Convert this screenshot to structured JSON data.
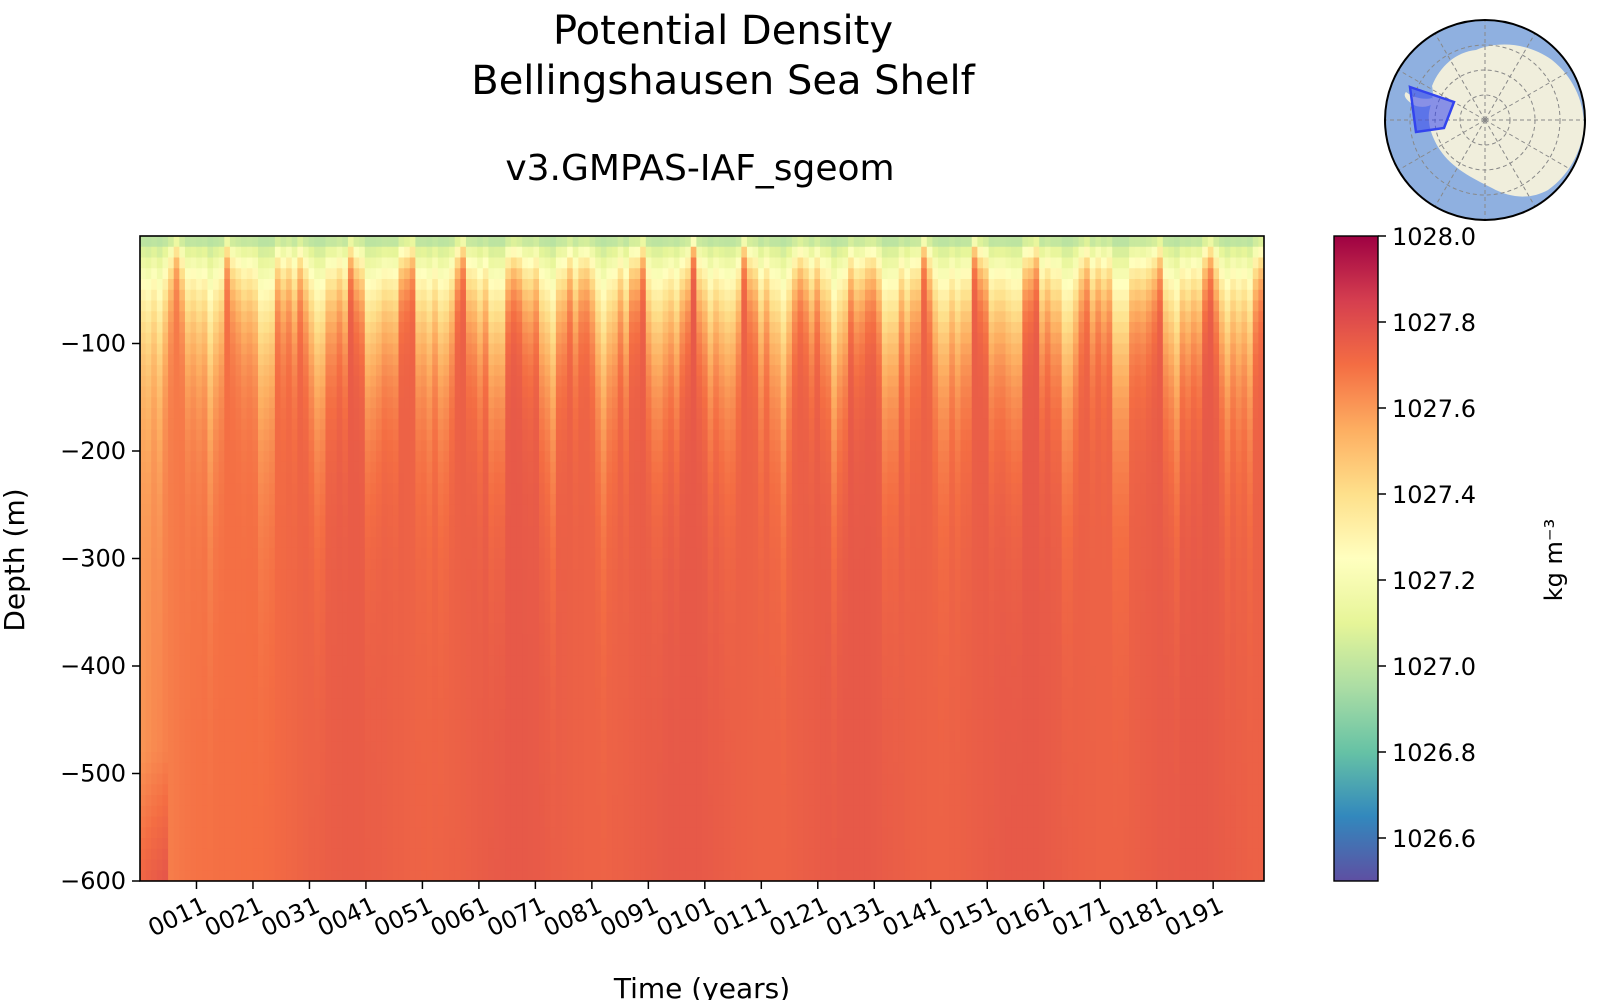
{
  "chart_data": {
    "type": "heatmap",
    "title_line1": "Potential Density",
    "title_line2": "Bellingshausen Sea Shelf",
    "subtitle": "v3.GMPAS-IAF_sgeom",
    "xlabel": "Time (years)",
    "ylabel": "Depth (m)",
    "xlim": [
      1,
      200
    ],
    "ylim": [
      -600,
      0
    ],
    "x_ticks": [
      {
        "value": 11,
        "label": "0011"
      },
      {
        "value": 21,
        "label": "0021"
      },
      {
        "value": 31,
        "label": "0031"
      },
      {
        "value": 41,
        "label": "0041"
      },
      {
        "value": 51,
        "label": "0051"
      },
      {
        "value": 61,
        "label": "0061"
      },
      {
        "value": 71,
        "label": "0071"
      },
      {
        "value": 81,
        "label": "0081"
      },
      {
        "value": 91,
        "label": "0091"
      },
      {
        "value": 101,
        "label": "0101"
      },
      {
        "value": 111,
        "label": "0111"
      },
      {
        "value": 121,
        "label": "0121"
      },
      {
        "value": 131,
        "label": "0131"
      },
      {
        "value": 141,
        "label": "0141"
      },
      {
        "value": 151,
        "label": "0151"
      },
      {
        "value": 161,
        "label": "0161"
      },
      {
        "value": 171,
        "label": "0171"
      },
      {
        "value": 181,
        "label": "0181"
      },
      {
        "value": 191,
        "label": "0191"
      }
    ],
    "y_ticks": [
      {
        "value": -100,
        "label": "−100"
      },
      {
        "value": -200,
        "label": "−200"
      },
      {
        "value": -300,
        "label": "−300"
      },
      {
        "value": -400,
        "label": "−400"
      },
      {
        "value": -500,
        "label": "−500"
      },
      {
        "value": -600,
        "label": "−600"
      }
    ],
    "colorbar": {
      "label": "kg m⁻³",
      "range": [
        1026.5,
        1028.0
      ],
      "ticks": [
        {
          "value": 1028.0,
          "label": "1028.0"
        },
        {
          "value": 1027.8,
          "label": "1027.8"
        },
        {
          "value": 1027.6,
          "label": "1027.6"
        },
        {
          "value": 1027.4,
          "label": "1027.4"
        },
        {
          "value": 1027.2,
          "label": "1027.2"
        },
        {
          "value": 1027.0,
          "label": "1027.0"
        },
        {
          "value": 1026.8,
          "label": "1026.8"
        },
        {
          "value": 1026.6,
          "label": "1026.6"
        }
      ],
      "colormap": "Spectral_r"
    },
    "field_summary": {
      "surface_value_approx": 1026.95,
      "deep_value_approx": 1027.75,
      "spinup_deep_value_approx": 1027.6
    }
  },
  "inset_map": {
    "ocean_color": "#8fb0e0",
    "land_color": "#f0eedc",
    "region_color": "#3344ee"
  }
}
